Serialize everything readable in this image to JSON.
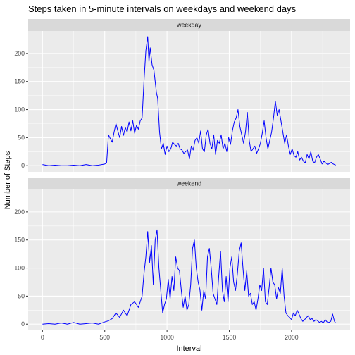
{
  "colors": {
    "line": "#0000ff",
    "panel_background": "#ebebeb",
    "strip_background": "#d9d9d9",
    "grid": "#ffffff"
  },
  "chart_data": {
    "type": "line",
    "title": "Steps taken in 5-minute intervals on weekdays and weekend days",
    "xlabel": "Interval",
    "ylabel": "Number of Steps",
    "xlim": [
      -115,
      2470
    ],
    "ylim": [
      -11,
      240
    ],
    "x_ticks": [
      0,
      500,
      1000,
      1500,
      2000
    ],
    "y_ticks": [
      0,
      50,
      100,
      150,
      200
    ],
    "grid": true,
    "facets": [
      {
        "label": "weekday",
        "series": {
          "x": [
            0,
            50,
            100,
            150,
            200,
            250,
            300,
            350,
            400,
            450,
            500,
            515,
            530,
            545,
            560,
            575,
            590,
            605,
            620,
            635,
            650,
            665,
            680,
            695,
            710,
            725,
            740,
            755,
            770,
            785,
            800,
            815,
            830,
            845,
            855,
            865,
            880,
            895,
            905,
            915,
            925,
            940,
            955,
            970,
            985,
            1000,
            1015,
            1030,
            1045,
            1060,
            1075,
            1090,
            1105,
            1120,
            1135,
            1150,
            1165,
            1180,
            1195,
            1210,
            1225,
            1240,
            1255,
            1270,
            1285,
            1300,
            1315,
            1330,
            1345,
            1360,
            1375,
            1390,
            1405,
            1420,
            1435,
            1450,
            1465,
            1480,
            1495,
            1510,
            1525,
            1540,
            1555,
            1570,
            1585,
            1600,
            1615,
            1630,
            1645,
            1660,
            1675,
            1690,
            1705,
            1720,
            1735,
            1750,
            1765,
            1780,
            1795,
            1810,
            1825,
            1840,
            1855,
            1870,
            1885,
            1900,
            1915,
            1930,
            1945,
            1960,
            1975,
            1990,
            2005,
            2020,
            2035,
            2050,
            2065,
            2080,
            2095,
            2110,
            2125,
            2140,
            2155,
            2170,
            2185,
            2200,
            2215,
            2230,
            2245,
            2260,
            2275,
            2290,
            2305,
            2320,
            2335,
            2355
          ],
          "y": [
            2,
            0,
            1,
            0,
            0,
            1,
            0,
            2,
            0,
            1,
            3,
            5,
            55,
            48,
            42,
            60,
            75,
            62,
            50,
            70,
            54,
            68,
            60,
            78,
            62,
            80,
            58,
            72,
            65,
            80,
            85,
            150,
            205,
            230,
            185,
            210,
            180,
            170,
            150,
            130,
            120,
            60,
            30,
            40,
            20,
            35,
            25,
            30,
            42,
            38,
            35,
            40,
            30,
            28,
            22,
            25,
            28,
            12,
            35,
            28,
            45,
            50,
            40,
            62,
            30,
            25,
            55,
            65,
            40,
            30,
            55,
            20,
            45,
            40,
            55,
            30,
            40,
            25,
            50,
            38,
            62,
            78,
            85,
            100,
            70,
            55,
            40,
            60,
            95,
            45,
            25,
            30,
            35,
            22,
            30,
            40,
            58,
            80,
            50,
            30,
            45,
            60,
            85,
            115,
            90,
            100,
            80,
            60,
            40,
            55,
            35,
            20,
            30,
            18,
            15,
            25,
            10,
            15,
            8,
            5,
            20,
            12,
            25,
            8,
            5,
            15,
            20,
            12,
            3,
            8,
            5,
            2,
            4,
            6,
            3,
            1
          ]
        }
      },
      {
        "label": "weekend",
        "series": {
          "x": [
            0,
            50,
            100,
            150,
            200,
            250,
            300,
            350,
            400,
            450,
            500,
            530,
            560,
            590,
            620,
            650,
            680,
            710,
            740,
            770,
            800,
            815,
            830,
            845,
            860,
            875,
            890,
            905,
            920,
            935,
            950,
            965,
            980,
            995,
            1010,
            1025,
            1040,
            1055,
            1070,
            1085,
            1100,
            1115,
            1130,
            1145,
            1160,
            1175,
            1190,
            1205,
            1220,
            1235,
            1250,
            1265,
            1280,
            1295,
            1310,
            1325,
            1340,
            1355,
            1370,
            1385,
            1400,
            1415,
            1430,
            1445,
            1460,
            1475,
            1490,
            1505,
            1520,
            1535,
            1550,
            1565,
            1580,
            1595,
            1610,
            1625,
            1640,
            1655,
            1670,
            1685,
            1700,
            1715,
            1730,
            1745,
            1760,
            1775,
            1790,
            1805,
            1820,
            1835,
            1850,
            1865,
            1880,
            1895,
            1910,
            1925,
            1940,
            1955,
            1970,
            1985,
            2000,
            2015,
            2030,
            2045,
            2060,
            2075,
            2090,
            2105,
            2120,
            2135,
            2150,
            2165,
            2180,
            2195,
            2210,
            2225,
            2240,
            2255,
            2270,
            2285,
            2300,
            2315,
            2330,
            2345,
            2355
          ],
          "y": [
            0,
            1,
            0,
            2,
            0,
            3,
            0,
            1,
            2,
            0,
            4,
            6,
            10,
            20,
            12,
            25,
            15,
            35,
            40,
            30,
            50,
            90,
            120,
            165,
            110,
            140,
            70,
            150,
            168,
            100,
            60,
            20,
            35,
            45,
            80,
            45,
            85,
            60,
            120,
            100,
            95,
            60,
            30,
            50,
            25,
            35,
            70,
            135,
            150,
            100,
            75,
            60,
            25,
            60,
            45,
            120,
            135,
            100,
            55,
            45,
            35,
            85,
            130,
            60,
            40,
            85,
            40,
            100,
            120,
            75,
            60,
            90,
            130,
            145,
            100,
            60,
            95,
            50,
            55,
            35,
            40,
            25,
            45,
            70,
            60,
            100,
            40,
            35,
            65,
            100,
            75,
            70,
            45,
            65,
            55,
            100,
            50,
            20,
            15,
            12,
            8,
            20,
            15,
            25,
            18,
            10,
            5,
            8,
            12,
            15,
            8,
            10,
            5,
            8,
            6,
            3,
            5,
            2,
            8,
            4,
            3,
            5,
            18,
            5,
            2
          ]
        }
      }
    ]
  }
}
